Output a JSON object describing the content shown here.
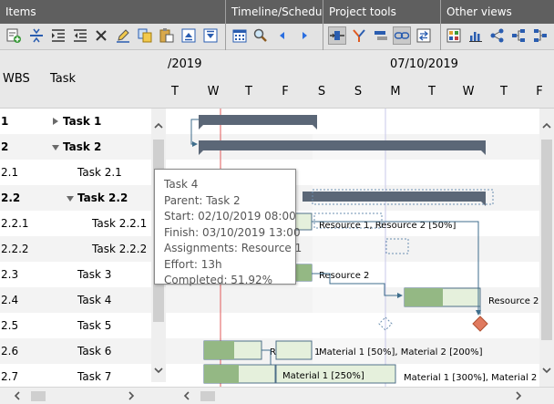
{
  "ribbon": {
    "groups": [
      {
        "title": "Items"
      },
      {
        "title": "Timeline/Schedule"
      },
      {
        "title": "Project tools"
      },
      {
        "title": "Other views"
      }
    ]
  },
  "grid": {
    "headers": {
      "wbs": "WBS",
      "task": "Task"
    },
    "rows": [
      {
        "wbs": "1",
        "task": "Task 1"
      },
      {
        "wbs": "2",
        "task": "Task 2"
      },
      {
        "wbs": "2.1",
        "task": "Task 2.1"
      },
      {
        "wbs": "2.2",
        "task": "Task 2.2"
      },
      {
        "wbs": "2.2.1",
        "task": "Task 2.2.1"
      },
      {
        "wbs": "2.2.2",
        "task": "Task 2.2.2"
      },
      {
        "wbs": "2.3",
        "task": "Task 3"
      },
      {
        "wbs": "2.4",
        "task": "Task 4"
      },
      {
        "wbs": "2.5",
        "task": "Task 5"
      },
      {
        "wbs": "2.6",
        "task": "Task 6"
      },
      {
        "wbs": "2.7",
        "task": "Task 7"
      }
    ]
  },
  "chart": {
    "weeks": [
      "/2019",
      "07/10/2019"
    ],
    "days": [
      "T",
      "W",
      "T",
      "F",
      "S",
      "S",
      "M",
      "T",
      "W",
      "T",
      "F"
    ],
    "assignments": {
      "task_2_1": "Resource 1, Resource 2 [50%]",
      "task_2_2_1": "Resource 2",
      "task_2_2_2": "Resource 2",
      "task_4": "Resource 1",
      "task_5": "Material 1 [300%], Material 2",
      "task_6": "Material 1 [50%], Material 2 [200%]",
      "task_7": "Material 1 [250%]"
    },
    "colors": {
      "summary": "#5b6777",
      "task_fill": "#e5f0dc",
      "task_progress": "#94b884",
      "task_border": "#4f6f88",
      "milestone": "#e07a5f",
      "link": "#3f6e8c",
      "today_line": "#e05a5a"
    }
  },
  "tooltip": {
    "title": "Task 4",
    "parent": "Parent: Task 2",
    "start": "Start: 02/10/2019 08:00",
    "finish": "Finish: 03/10/2019 13:00",
    "assignments": "Assignments: Resource 1",
    "effort": "Effort: 13h",
    "completed": "Completed: 51.92%"
  }
}
